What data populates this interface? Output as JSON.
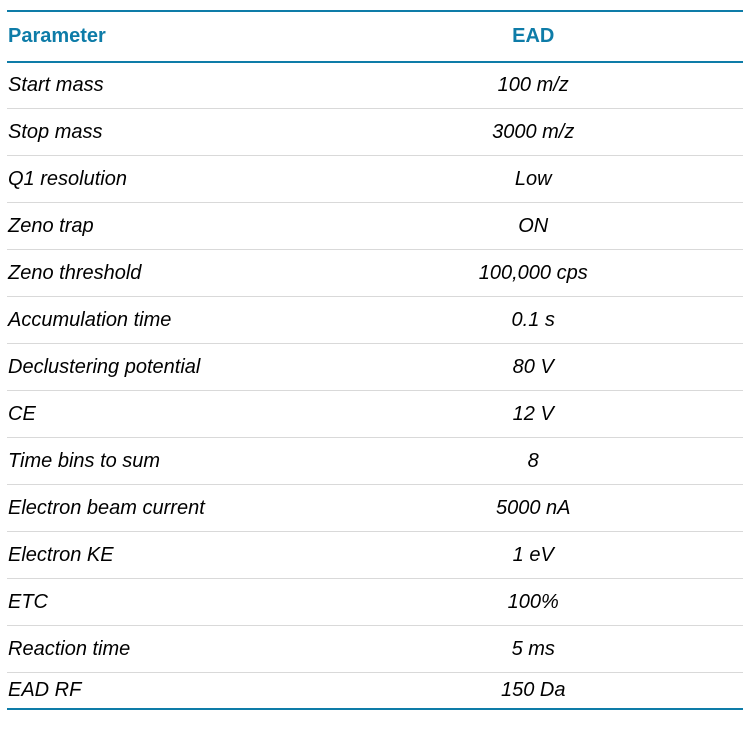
{
  "colors": {
    "accent": "#0E7CA8",
    "separator": "#D9D9D9",
    "text": "#000000",
    "background": "#FFFFFF"
  },
  "table": {
    "columns": [
      {
        "label": "Parameter"
      },
      {
        "label": "EAD"
      }
    ],
    "rows": [
      {
        "param": "Start mass",
        "value": "100 m/z"
      },
      {
        "param": "Stop mass",
        "value": "3000 m/z"
      },
      {
        "param": "Q1 resolution",
        "value": "Low"
      },
      {
        "param": "Zeno trap",
        "value": "ON"
      },
      {
        "param": "Zeno threshold",
        "value": "100,000 cps"
      },
      {
        "param": "Accumulation time",
        "value": "0.1 s"
      },
      {
        "param": "Declustering potential",
        "value": "80 V"
      },
      {
        "param": "CE",
        "value": "12 V"
      },
      {
        "param": "Time bins to sum",
        "value": "8"
      },
      {
        "param": "Electron beam current",
        "value": "5000 nA"
      },
      {
        "param": "Electron KE",
        "value": "1 eV"
      },
      {
        "param": "ETC",
        "value": "100%"
      },
      {
        "param": "Reaction time",
        "value": "5 ms"
      },
      {
        "param": "EAD RF",
        "value": "150 Da"
      }
    ]
  }
}
